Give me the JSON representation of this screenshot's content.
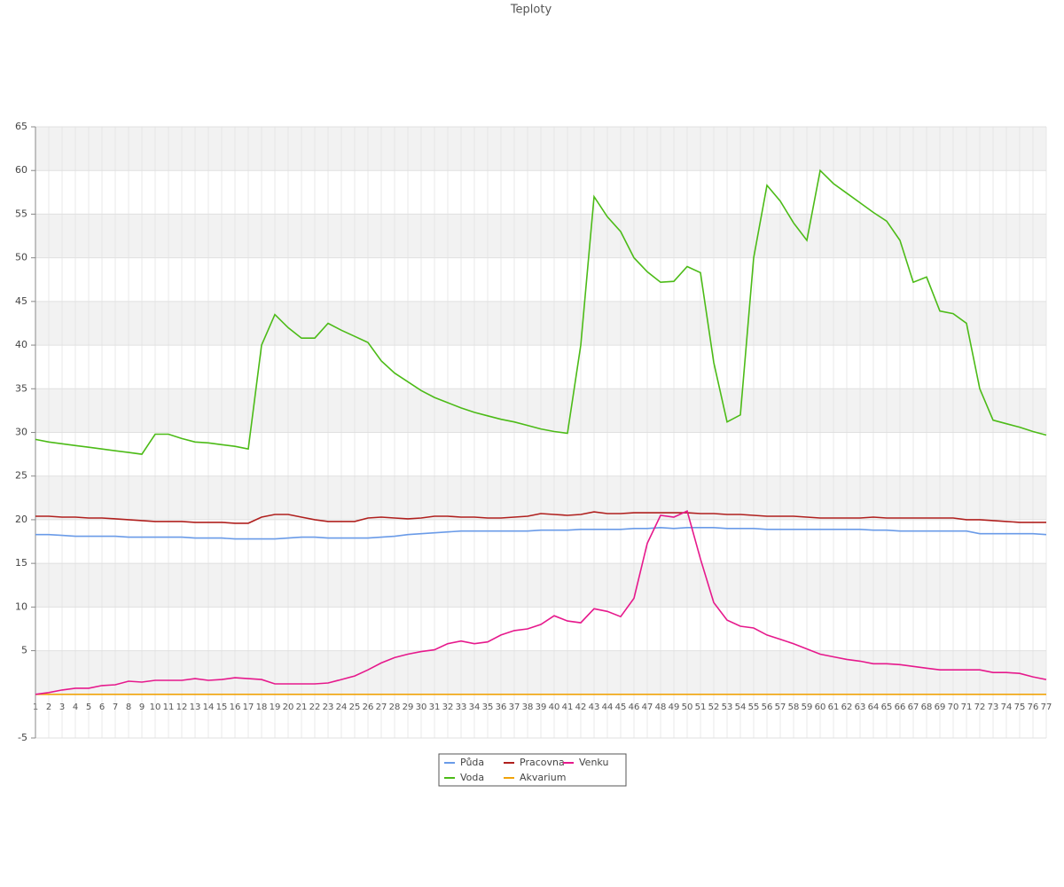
{
  "chart_data": {
    "type": "line",
    "title": "Teploty",
    "categories": [
      1,
      2,
      3,
      4,
      5,
      6,
      7,
      8,
      9,
      10,
      11,
      12,
      13,
      14,
      15,
      16,
      17,
      18,
      19,
      20,
      21,
      22,
      23,
      24,
      25,
      26,
      27,
      28,
      29,
      30,
      31,
      32,
      33,
      34,
      35,
      36,
      37,
      38,
      39,
      40,
      41,
      42,
      43,
      44,
      45,
      46,
      47,
      48,
      49,
      50,
      51,
      52,
      53,
      54,
      55,
      56,
      57,
      58,
      59,
      60,
      61,
      62,
      63,
      64,
      65,
      66,
      67,
      68,
      69,
      70,
      71,
      72,
      73,
      74,
      75,
      76,
      77
    ],
    "ylim": [
      -5,
      65
    ],
    "yticks": [
      -5,
      5,
      10,
      15,
      20,
      25,
      30,
      35,
      40,
      45,
      50,
      55,
      60,
      65
    ],
    "grid": true,
    "legend": "bottom",
    "series": [
      {
        "name": "Půda",
        "color": "#6a9be8",
        "values": [
          18.3,
          18.3,
          18.2,
          18.1,
          18.1,
          18.1,
          18.1,
          18.0,
          18.0,
          18.0,
          18.0,
          18.0,
          17.9,
          17.9,
          17.9,
          17.8,
          17.8,
          17.8,
          17.8,
          17.9,
          18.0,
          18.0,
          17.9,
          17.9,
          17.9,
          17.9,
          18.0,
          18.1,
          18.3,
          18.4,
          18.5,
          18.6,
          18.7,
          18.7,
          18.7,
          18.7,
          18.7,
          18.7,
          18.8,
          18.8,
          18.8,
          18.9,
          18.9,
          18.9,
          18.9,
          19.0,
          19.0,
          19.1,
          19.0,
          19.1,
          19.1,
          19.1,
          19.0,
          19.0,
          19.0,
          18.9,
          18.9,
          18.9,
          18.9,
          18.9,
          18.9,
          18.9,
          18.9,
          18.8,
          18.8,
          18.7,
          18.7,
          18.7,
          18.7,
          18.7,
          18.7,
          18.4,
          18.4,
          18.4,
          18.4,
          18.4,
          18.3
        ]
      },
      {
        "name": "Voda",
        "color": "#4cbb17",
        "values": [
          29.2,
          28.9,
          28.7,
          28.5,
          28.3,
          28.1,
          27.9,
          27.7,
          27.5,
          29.8,
          29.8,
          29.3,
          28.9,
          28.8,
          28.6,
          28.4,
          28.1,
          40,
          43.5,
          42,
          40.8,
          40.8,
          42.5,
          41.7,
          41,
          40.3,
          38.2,
          36.8,
          35.8,
          34.8,
          34,
          33.4,
          32.8,
          32.3,
          31.9,
          31.5,
          31.2,
          30.8,
          30.4,
          30.1,
          29.9,
          40,
          57,
          54.7,
          53,
          50,
          48.4,
          47.2,
          47.3,
          49,
          48.3,
          38,
          31.2,
          32,
          50,
          58.3,
          56.5,
          54,
          52,
          60,
          58.5,
          57.4,
          56.3,
          55.2,
          54.2,
          52,
          47.2,
          47.8,
          43.9,
          43.6,
          42.5,
          35,
          31.4,
          31,
          30.6,
          30.1,
          29.7
        ]
      },
      {
        "name": "Pracovna",
        "color": "#b0201e",
        "values": [
          20.4,
          20.4,
          20.3,
          20.3,
          20.2,
          20.2,
          20.1,
          20.0,
          19.9,
          19.8,
          19.8,
          19.8,
          19.7,
          19.7,
          19.7,
          19.6,
          19.6,
          20.3,
          20.6,
          20.6,
          20.3,
          20.0,
          19.8,
          19.8,
          19.8,
          20.2,
          20.3,
          20.2,
          20.1,
          20.2,
          20.4,
          20.4,
          20.3,
          20.3,
          20.2,
          20.2,
          20.3,
          20.4,
          20.7,
          20.6,
          20.5,
          20.6,
          20.9,
          20.7,
          20.7,
          20.8,
          20.8,
          20.8,
          20.8,
          20.8,
          20.7,
          20.7,
          20.6,
          20.6,
          20.5,
          20.4,
          20.4,
          20.4,
          20.3,
          20.2,
          20.2,
          20.2,
          20.2,
          20.3,
          20.2,
          20.2,
          20.2,
          20.2,
          20.2,
          20.2,
          20.0,
          20.0,
          19.9,
          19.8,
          19.7,
          19.7,
          19.7
        ]
      },
      {
        "name": "Akvarium",
        "color": "#f0a30a",
        "values": [
          0,
          0,
          0,
          0,
          0,
          0,
          0,
          0,
          0,
          0,
          0,
          0,
          0,
          0,
          0,
          0,
          0,
          0,
          0,
          0,
          0,
          0,
          0,
          0,
          0,
          0,
          0,
          0,
          0,
          0,
          0,
          0,
          0,
          0,
          0,
          0,
          0,
          0,
          0,
          0,
          0,
          0,
          0,
          0,
          0,
          0,
          0,
          0,
          0,
          0,
          0,
          0,
          0,
          0,
          0,
          0,
          0,
          0,
          0,
          0,
          0,
          0,
          0,
          0,
          0,
          0,
          0,
          0,
          0,
          0,
          0,
          0,
          0,
          0,
          0,
          0,
          0
        ]
      },
      {
        "name": "Venku",
        "color": "#e6198c",
        "values": [
          0,
          0.2,
          0.5,
          0.7,
          0.7,
          1.0,
          1.1,
          1.5,
          1.4,
          1.6,
          1.6,
          1.6,
          1.8,
          1.6,
          1.7,
          1.9,
          1.8,
          1.7,
          1.2,
          1.2,
          1.2,
          1.2,
          1.3,
          1.7,
          2.1,
          2.8,
          3.6,
          4.2,
          4.6,
          4.9,
          5.1,
          5.8,
          6.1,
          5.8,
          6.0,
          6.8,
          7.3,
          7.5,
          8.0,
          9.0,
          8.4,
          8.2,
          9.8,
          9.5,
          8.9,
          11.0,
          17.3,
          20.5,
          20.3,
          21.0,
          15.5,
          10.5,
          8.5,
          7.8,
          7.6,
          6.8,
          6.3,
          5.8,
          5.2,
          4.6,
          4.3,
          4.0,
          3.8,
          3.5,
          3.5,
          3.4,
          3.2,
          3.0,
          2.8,
          2.8,
          2.8,
          2.8,
          2.5,
          2.5,
          2.4,
          2.0,
          1.7
        ]
      }
    ]
  }
}
